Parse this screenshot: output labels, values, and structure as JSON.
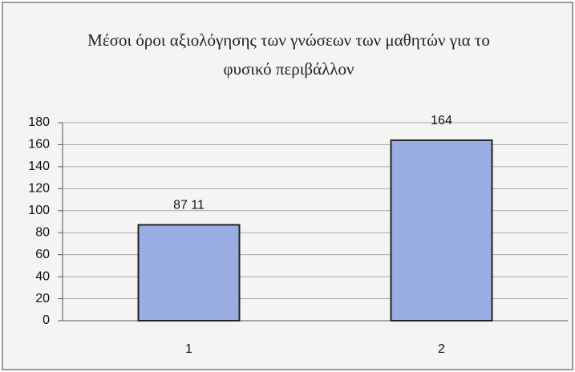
{
  "chart_data": {
    "type": "bar",
    "title": "Μέσοι όροι αξιολόγησης των γνώσεων των μαθητών για το φυσικό περιβάλλον",
    "categories": [
      "1",
      "2"
    ],
    "values": [
      87.11,
      164
    ],
    "value_labels": [
      "87 11",
      "164"
    ],
    "color": "#9aaee3",
    "ylim": [
      0,
      180
    ],
    "yticks": [
      0,
      20,
      40,
      60,
      80,
      100,
      120,
      140,
      160,
      180
    ],
    "grid": true
  }
}
